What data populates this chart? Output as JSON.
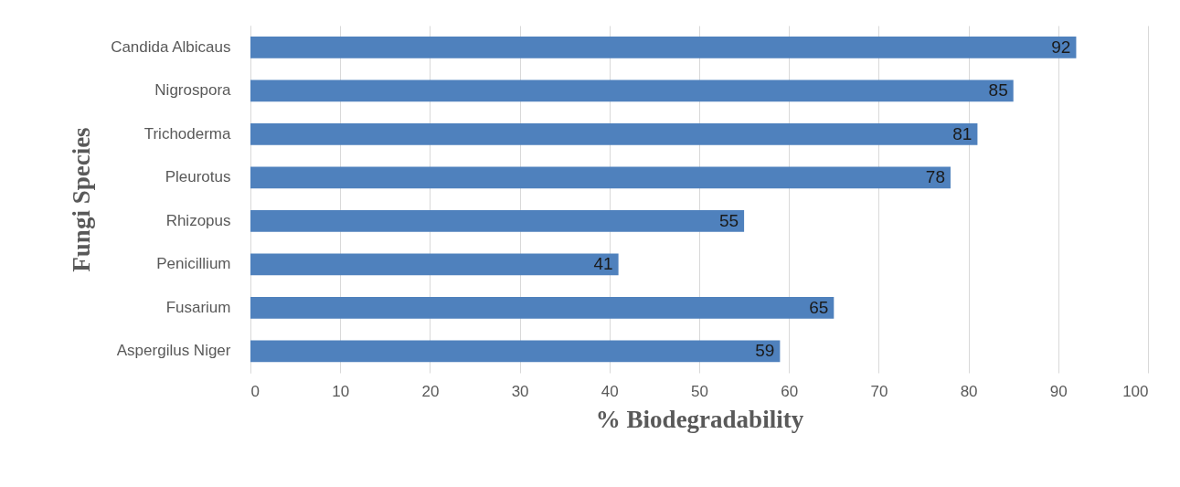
{
  "chart_data": {
    "type": "bar",
    "orientation": "horizontal",
    "xlabel": "% Biodegradability",
    "ylabel": "Fungi Species",
    "categories": [
      "Candida Albicaus",
      "Nigrospora",
      "Trichoderma",
      "Pleurotus",
      "Rhizopus",
      "Penicillium",
      "Fusarium",
      "Aspergilus Niger"
    ],
    "values": [
      92,
      85,
      81,
      78,
      55,
      41,
      65,
      59
    ],
    "color": "#4f81bd",
    "data_labels": true,
    "xlim": [
      0,
      100
    ],
    "xticks": [
      0,
      10,
      20,
      30,
      40,
      50,
      60,
      70,
      80,
      90,
      100
    ],
    "grid": "x",
    "legend": false
  }
}
